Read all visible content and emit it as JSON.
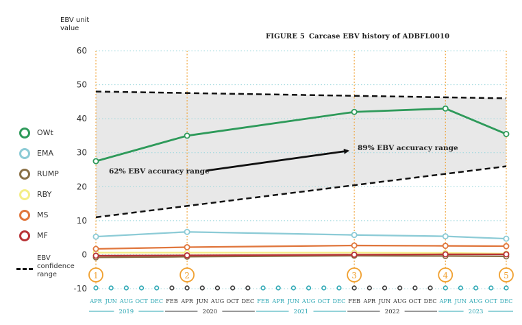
{
  "chart_data": {
    "type": "line",
    "title": "Carcase EBV history of ADBFL0010",
    "figure_label": "FIGURE 5",
    "ylabel": "EBV unit value",
    "ylim": [
      -10,
      60
    ],
    "yticks": [
      -10,
      0,
      10,
      20,
      30,
      40,
      50,
      60
    ],
    "x_tick_labels": [
      "APR",
      "JUN",
      "AUG",
      "OCT",
      "DEC",
      "FEB",
      "APR",
      "JUN",
      "AUG",
      "OCT",
      "DEC",
      "FEB",
      "APR",
      "JUN",
      "AUG",
      "OCT",
      "DEC",
      "FEB",
      "APR",
      "JUN",
      "AUG",
      "OCT",
      "DEC",
      "APR",
      "JUN",
      "AUG",
      "OCT",
      "DEC"
    ],
    "x_tick_colors": [
      "teal",
      "teal",
      "teal",
      "teal",
      "teal",
      "dark",
      "dark",
      "dark",
      "dark",
      "dark",
      "dark",
      "teal",
      "teal",
      "teal",
      "teal",
      "teal",
      "teal",
      "dark",
      "dark",
      "dark",
      "dark",
      "dark",
      "dark",
      "teal",
      "teal",
      "teal",
      "teal",
      "teal"
    ],
    "years": [
      {
        "label": "2019",
        "color": "teal"
      },
      {
        "label": "2020",
        "color": "dark"
      },
      {
        "label": "2021",
        "color": "teal"
      },
      {
        "label": "2022",
        "color": "dark"
      },
      {
        "label": "2023",
        "color": "teal"
      }
    ],
    "evaluation_markers": [
      {
        "label": "1",
        "tick_index": 0
      },
      {
        "label": "2",
        "tick_index": 6
      },
      {
        "label": "3",
        "tick_index": 17
      },
      {
        "label": "4",
        "tick_index": 23
      },
      {
        "label": "5",
        "tick_index": 27
      }
    ],
    "series": [
      {
        "name": "OWt",
        "color": "#2e9a5a",
        "values": [
          27.5,
          35.0,
          42.0,
          43.0,
          35.5
        ]
      },
      {
        "name": "EMA",
        "color": "#8ccbd6",
        "values": [
          5.3,
          6.7,
          5.8,
          5.4,
          4.7
        ]
      },
      {
        "name": "RUMP",
        "color": "#8a7046",
        "values": [
          -0.8,
          -0.6,
          -0.3,
          -0.4,
          -0.5
        ]
      },
      {
        "name": "RBY",
        "color": "#f4ee86",
        "values": [
          0.6,
          0.6,
          0.6,
          0.5,
          0.3
        ]
      },
      {
        "name": "MS",
        "color": "#e0763c",
        "values": [
          1.7,
          2.2,
          2.7,
          2.6,
          2.5
        ]
      },
      {
        "name": "MF",
        "color": "#b83236",
        "values": [
          -0.3,
          -0.2,
          0.0,
          0.1,
          0.1
        ]
      }
    ],
    "confidence_range": {
      "label": "EBV confidence range",
      "upper": [
        [
          0,
          48.0
        ],
        [
          27,
          46.0
        ]
      ],
      "lower": [
        [
          0,
          11.0
        ],
        [
          27,
          26.0
        ]
      ]
    },
    "annotations": [
      {
        "text": "62% EBV accuracy range"
      },
      {
        "text": "89% EBV accuracy range"
      }
    ]
  }
}
